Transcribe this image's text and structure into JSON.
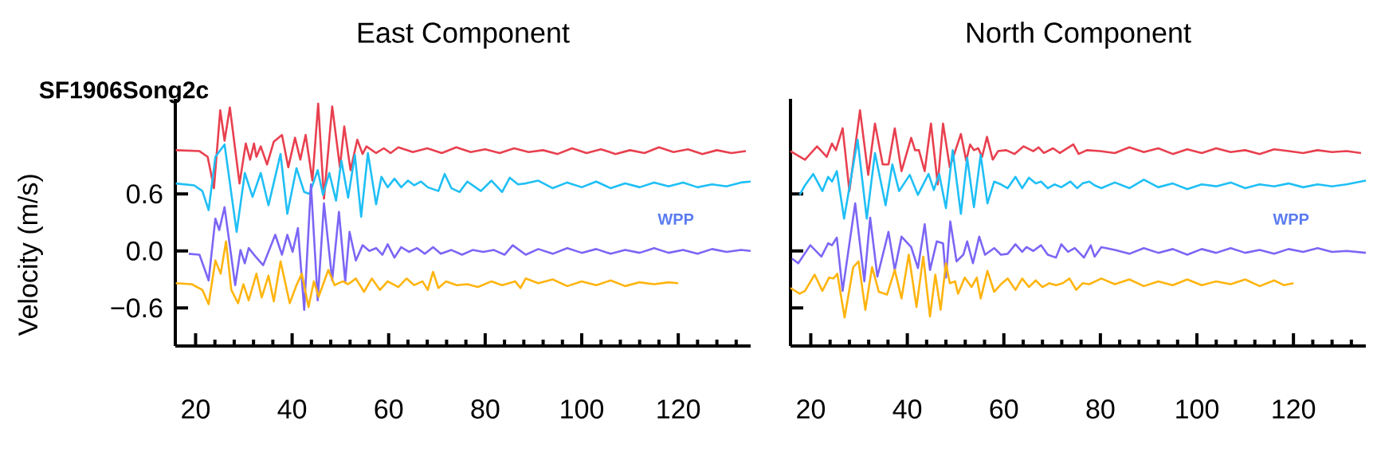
{
  "chart_data": [
    {
      "type": "line",
      "title": "East Component",
      "subtitle": "SF1906Song2c",
      "ylabel": "Velocity (m/s)",
      "annotations": [
        "WPP"
      ],
      "marker": "none",
      "line_style": "solid",
      "xlim": [
        15.8,
        135
      ],
      "ylim": [
        -1.0,
        1.6
      ],
      "xticks": [
        20,
        {
          "value": 24,
          "label": null
        },
        {
          "value": 28,
          "label": null
        },
        {
          "value": 32,
          "label": null
        },
        {
          "value": 36,
          "label": null
        },
        40,
        {
          "value": 44,
          "label": null
        },
        {
          "value": 48,
          "label": null
        },
        {
          "value": 52,
          "label": null
        },
        {
          "value": 56,
          "label": null
        },
        60,
        {
          "value": 64,
          "label": null
        },
        {
          "value": 68,
          "label": null
        },
        {
          "value": 72,
          "label": null
        },
        {
          "value": 76,
          "label": null
        },
        80,
        {
          "value": 84,
          "label": null
        },
        {
          "value": 88,
          "label": null
        },
        {
          "value": 92,
          "label": null
        },
        {
          "value": 96,
          "label": null
        },
        100,
        {
          "value": 104,
          "label": null
        },
        {
          "value": 108,
          "label": null
        },
        {
          "value": 112,
          "label": null
        },
        {
          "value": 116,
          "label": null
        },
        120,
        {
          "value": 124,
          "label": null
        },
        {
          "value": 128,
          "label": null
        },
        {
          "value": 132,
          "label": null
        }
      ],
      "yticks": [
        {
          "value": 0.6,
          "label": "0.6"
        },
        {
          "value": 0.0,
          "label": "0.0"
        },
        {
          "value": -0.6,
          "label": "−0.6"
        }
      ],
      "series": [
        {
          "color": "#e8404f",
          "x": [
            15.9,
            20.8,
            22.5,
            23.8,
            25.1,
            26.0,
            27.1,
            29.1,
            30.4,
            31.3,
            32.1,
            32.6,
            33.5,
            34.8,
            36.2,
            37.9,
            39.2,
            40.6,
            41.7,
            42.8,
            44.2,
            45.4,
            46.6,
            48.3,
            49.9,
            50.8,
            52.1,
            53.5,
            54.6,
            55.4,
            57.4,
            59.0,
            60.4,
            62.0,
            65,
            68,
            71,
            74,
            77,
            80,
            83,
            86,
            89,
            92,
            95,
            98,
            101,
            104,
            107,
            110,
            113,
            116,
            119,
            122,
            125,
            128,
            131,
            134
          ],
          "values": [
            1.06,
            1.05,
            0.99,
            0.66,
            1.48,
            1.16,
            1.51,
            0.71,
            1.13,
            0.96,
            1.13,
            0.99,
            1.1,
            0.91,
            1.15,
            1.22,
            0.88,
            1.19,
            0.96,
            1.22,
            0.74,
            1.55,
            0.55,
            1.52,
            0.88,
            1.31,
            0.85,
            1.17,
            1.02,
            1.1,
            1.03,
            1.08,
            1.03,
            1.09,
            1.04,
            1.08,
            1.03,
            1.09,
            1.04,
            1.07,
            1.03,
            1.08,
            1.04,
            1.06,
            1.02,
            1.08,
            1.03,
            1.07,
            1.02,
            1.06,
            1.03,
            1.09,
            1.04,
            1.07,
            1.02,
            1.06,
            1.03,
            1.05
          ]
        },
        {
          "color": "#1fbff5",
          "x": [
            15.9,
            19.7,
            21.4,
            22.7,
            24.1,
            26.0,
            28.5,
            30.2,
            31.8,
            33.5,
            35.1,
            37.6,
            39.0,
            40.9,
            42.5,
            43.6,
            45.3,
            46.4,
            47.7,
            49.1,
            50.2,
            51.6,
            53.0,
            54.3,
            55.7,
            57.4,
            58.5,
            59.8,
            61.2,
            62.6,
            64.0,
            65.3,
            66.7,
            68.1,
            70.3,
            71.6,
            73.0,
            74.7,
            76.3,
            79.1,
            81.3,
            83.5,
            85.1,
            86.8,
            88.4,
            91,
            94,
            97,
            100,
            103,
            106,
            109,
            112,
            115,
            118,
            121,
            124,
            127,
            130,
            133,
            135
          ],
          "values": [
            0.71,
            0.69,
            0.63,
            0.43,
            0.99,
            1.12,
            0.2,
            0.82,
            0.57,
            0.82,
            0.48,
            1.02,
            0.39,
            0.87,
            0.62,
            0.6,
            0.85,
            0.59,
            0.82,
            0.53,
            0.95,
            0.56,
            1.01,
            0.36,
            1.03,
            0.49,
            0.78,
            0.67,
            0.76,
            0.67,
            0.74,
            0.69,
            0.73,
            0.67,
            0.63,
            0.81,
            0.66,
            0.62,
            0.73,
            0.63,
            0.74,
            0.62,
            0.77,
            0.7,
            0.71,
            0.74,
            0.66,
            0.72,
            0.67,
            0.73,
            0.66,
            0.71,
            0.67,
            0.72,
            0.68,
            0.72,
            0.67,
            0.7,
            0.68,
            0.72,
            0.73
          ]
        },
        {
          "color": "#7b66f5",
          "x": [
            18.6,
            20.8,
            22.7,
            24.1,
            24.9,
            26.0,
            28.2,
            29.3,
            30.2,
            31.0,
            32.1,
            34.0,
            36.5,
            37.9,
            39.0,
            40.1,
            41.2,
            42.5,
            43.9,
            45.3,
            46.6,
            48.3,
            49.7,
            51.0,
            51.9,
            53.2,
            54.6,
            56.0,
            57.4,
            58.7,
            59.8,
            61.2,
            62.6,
            64.2,
            65.9,
            67.5,
            69.2,
            70.8,
            73.0,
            75.2,
            77.4,
            79.6,
            81.8,
            84.0,
            85.7,
            88.4,
            91,
            94,
            97,
            100,
            103,
            106,
            109,
            112,
            115,
            118,
            121,
            124,
            127,
            130,
            133,
            135
          ],
          "values": [
            -0.03,
            -0.04,
            -0.31,
            0.34,
            0.22,
            0.46,
            -0.36,
            0.01,
            -0.13,
            0.03,
            -0.04,
            -0.15,
            0.17,
            -0.04,
            0.17,
            -0.01,
            0.24,
            -0.62,
            0.7,
            -0.52,
            0.5,
            -0.31,
            0.41,
            -0.32,
            0.2,
            -0.1,
            0.06,
            0.0,
            0.03,
            -0.04,
            0.07,
            -0.07,
            0.04,
            -0.01,
            0.03,
            -0.03,
            0.04,
            -0.03,
            0.01,
            -0.04,
            0.01,
            -0.01,
            0.01,
            -0.04,
            0.06,
            -0.04,
            0.02,
            -0.03,
            0.03,
            -0.02,
            0.02,
            -0.03,
            0.01,
            -0.02,
            0.03,
            -0.02,
            0.01,
            -0.03,
            0.02,
            -0.01,
            0.01,
            0.0
          ]
        },
        {
          "color": "#ffb40f",
          "x": [
            15.9,
            19.2,
            21.4,
            22.7,
            24.1,
            25.2,
            26.3,
            27.4,
            28.8,
            29.9,
            31.0,
            32.6,
            33.7,
            35.1,
            36.2,
            37.6,
            39.5,
            40.9,
            42.0,
            43.4,
            44.5,
            45.5,
            47.5,
            48.8,
            50.5,
            51.6,
            53.2,
            54.9,
            56.5,
            58.2,
            59.8,
            62.0,
            63.7,
            65.3,
            67.0,
            68.1,
            69.2,
            70.3,
            71.9,
            74.1,
            76.3,
            78.5,
            81.3,
            83.5,
            86.2,
            87.3,
            88.4,
            91,
            94,
            97,
            100,
            103,
            106,
            109,
            112,
            115,
            118,
            120
          ],
          "values": [
            -0.34,
            -0.35,
            -0.41,
            -0.56,
            -0.1,
            -0.24,
            0.1,
            -0.41,
            -0.55,
            -0.35,
            -0.52,
            -0.24,
            -0.49,
            -0.26,
            -0.53,
            -0.11,
            -0.55,
            -0.36,
            -0.24,
            -0.59,
            -0.32,
            -0.48,
            -0.2,
            -0.36,
            -0.32,
            -0.35,
            -0.29,
            -0.43,
            -0.29,
            -0.41,
            -0.32,
            -0.38,
            -0.29,
            -0.36,
            -0.32,
            -0.41,
            -0.22,
            -0.39,
            -0.32,
            -0.36,
            -0.35,
            -0.38,
            -0.32,
            -0.36,
            -0.32,
            -0.39,
            -0.29,
            -0.34,
            -0.3,
            -0.37,
            -0.32,
            -0.36,
            -0.31,
            -0.37,
            -0.33,
            -0.35,
            -0.33,
            -0.34
          ]
        }
      ]
    },
    {
      "type": "line",
      "title": "North Component",
      "annotations": [
        "WPP"
      ],
      "marker": "none",
      "line_style": "solid",
      "tick_labels": "x",
      "xlim": [
        15.8,
        135
      ],
      "ylim": [
        -1.0,
        1.6
      ],
      "xticks": [
        20,
        {
          "value": 24,
          "label": null
        },
        {
          "value": 28,
          "label": null
        },
        {
          "value": 32,
          "label": null
        },
        {
          "value": 36,
          "label": null
        },
        40,
        {
          "value": 44,
          "label": null
        },
        {
          "value": 48,
          "label": null
        },
        {
          "value": 52,
          "label": null
        },
        {
          "value": 56,
          "label": null
        },
        60,
        {
          "value": 64,
          "label": null
        },
        {
          "value": 68,
          "label": null
        },
        {
          "value": 72,
          "label": null
        },
        {
          "value": 76,
          "label": null
        },
        80,
        {
          "value": 84,
          "label": null
        },
        {
          "value": 88,
          "label": null
        },
        {
          "value": 92,
          "label": null
        },
        {
          "value": 96,
          "label": null
        },
        100,
        {
          "value": 104,
          "label": null
        },
        {
          "value": 108,
          "label": null
        },
        {
          "value": 112,
          "label": null
        },
        {
          "value": 116,
          "label": null
        },
        120,
        {
          "value": 124,
          "label": null
        },
        {
          "value": 128,
          "label": null
        },
        {
          "value": 132,
          "label": null
        }
      ],
      "yticks": [
        {
          "value": 0.6,
          "label": null
        },
        {
          "value": 0.0,
          "label": null
        },
        {
          "value": -0.6,
          "label": null
        }
      ],
      "series": [
        {
          "color": "#e8404f",
          "x": [
            15.8,
            18.8,
            21.3,
            23.3,
            24.4,
            25.2,
            26.6,
            28.0,
            30.2,
            31.9,
            33.3,
            34.9,
            36.1,
            37.4,
            38.8,
            40.8,
            41.6,
            42.4,
            43.6,
            44.9,
            46.3,
            47.4,
            48.8,
            51.1,
            52.2,
            53.0,
            53.8,
            54.7,
            55.5,
            56.5,
            57.7,
            58.8,
            60.5,
            62.2,
            64.1,
            66.1,
            67.2,
            68.3,
            70.2,
            71.6,
            74.4,
            75.5,
            77.2,
            79.9,
            83,
            86,
            89,
            92,
            95,
            98,
            101,
            104,
            107,
            110,
            113,
            116,
            119,
            122,
            125,
            128,
            131,
            134
          ],
          "values": [
            1.05,
            0.96,
            1.1,
            0.99,
            1.13,
            1.06,
            1.29,
            0.63,
            1.48,
            0.8,
            1.34,
            0.91,
            0.91,
            1.29,
            0.84,
            1.19,
            1.06,
            1.06,
            0.84,
            1.34,
            0.7,
            1.34,
            0.88,
            1.23,
            0.95,
            1.12,
            1.06,
            1.08,
            0.99,
            1.2,
            0.96,
            1.05,
            1.06,
            1.02,
            1.1,
            1.05,
            1.09,
            1.03,
            1.08,
            1.03,
            1.12,
            1.02,
            1.06,
            1.05,
            1.03,
            1.09,
            1.04,
            1.08,
            1.02,
            1.07,
            1.03,
            1.08,
            1.04,
            1.06,
            1.02,
            1.07,
            1.05,
            1.03,
            1.06,
            1.04,
            1.05,
            1.03
          ]
        },
        {
          "color": "#1fbff5",
          "x": [
            17.7,
            18.8,
            20.5,
            22.4,
            23.6,
            24.4,
            25.4,
            26.9,
            29.7,
            31.6,
            33.3,
            35.5,
            36.9,
            38.3,
            40.5,
            42.2,
            44.4,
            45.5,
            46.6,
            48.0,
            49.4,
            51.1,
            52.4,
            53.8,
            55.2,
            56.6,
            58.0,
            59.4,
            60.8,
            62.4,
            63.8,
            65.2,
            66.6,
            67.7,
            69.1,
            70.5,
            71.9,
            73.8,
            75.2,
            76.3,
            77.7,
            78.8,
            80.2,
            83,
            86,
            89,
            92,
            95,
            98,
            101,
            104,
            107,
            110,
            113,
            116,
            119,
            122,
            125,
            128,
            131,
            135
          ],
          "values": [
            0.59,
            0.69,
            0.81,
            0.63,
            0.78,
            0.73,
            0.84,
            0.34,
            1.17,
            0.34,
            1.03,
            0.48,
            0.91,
            0.63,
            0.8,
            0.59,
            0.81,
            0.64,
            0.81,
            0.45,
            1.06,
            0.39,
            0.98,
            0.46,
            1.01,
            0.5,
            0.73,
            0.7,
            0.66,
            0.78,
            0.66,
            0.77,
            0.71,
            0.73,
            0.66,
            0.7,
            0.67,
            0.73,
            0.66,
            0.71,
            0.73,
            0.69,
            0.66,
            0.72,
            0.66,
            0.75,
            0.67,
            0.71,
            0.65,
            0.7,
            0.68,
            0.72,
            0.66,
            0.7,
            0.68,
            0.71,
            0.67,
            0.7,
            0.68,
            0.7,
            0.74
          ]
        },
        {
          "color": "#7b66f5",
          "x": [
            16.1,
            17.4,
            19.9,
            22.2,
            23.6,
            24.4,
            25.4,
            26.6,
            29.2,
            31.1,
            32.3,
            33.8,
            36.1,
            37.4,
            38.8,
            40.8,
            42.2,
            43.6,
            44.7,
            46.1,
            47.4,
            48.0,
            48.9,
            50.2,
            51.6,
            52.4,
            53.6,
            54.9,
            56.1,
            58.0,
            59.4,
            60.8,
            62.4,
            63.8,
            64.7,
            66.1,
            67.7,
            69.1,
            70.8,
            71.9,
            73.3,
            74.7,
            76.6,
            78.0,
            78.8,
            80.2,
            83,
            86,
            89,
            92,
            95,
            98,
            101,
            104,
            107,
            110,
            113,
            116,
            119,
            122,
            125,
            128,
            131,
            135
          ],
          "values": [
            -0.08,
            -0.13,
            0.06,
            -0.06,
            0.08,
            0.06,
            0.14,
            -0.42,
            0.5,
            -0.32,
            0.35,
            -0.27,
            0.2,
            -0.2,
            0.15,
            0.04,
            -0.18,
            0.28,
            -0.2,
            0.1,
            0.08,
            -0.28,
            0.31,
            -0.11,
            -0.04,
            0.1,
            -0.13,
            0.15,
            -0.04,
            0.03,
            -0.04,
            -0.03,
            0.07,
            -0.01,
            0.04,
            0.0,
            0.06,
            -0.04,
            -0.07,
            0.07,
            -0.01,
            0.03,
            -0.07,
            0.06,
            -0.06,
            0.04,
            0.01,
            -0.03,
            0.03,
            -0.02,
            0.02,
            -0.04,
            0.02,
            -0.02,
            0.03,
            -0.02,
            0.01,
            -0.03,
            0.02,
            -0.01,
            0.03,
            -0.01,
            0.0,
            -0.02
          ]
        },
        {
          "color": "#ffb40f",
          "x": [
            15.8,
            17.7,
            18.8,
            20.8,
            22.4,
            23.8,
            24.7,
            25.5,
            27.0,
            28.8,
            29.9,
            31.3,
            32.7,
            34.1,
            35.8,
            37.4,
            38.8,
            40.3,
            41.9,
            43.3,
            44.7,
            45.8,
            46.9,
            48.0,
            48.8,
            49.9,
            50.5,
            51.9,
            53.3,
            54.4,
            55.2,
            56.6,
            58.0,
            59.4,
            60.8,
            62.4,
            63.8,
            65.2,
            66.6,
            68.0,
            69.4,
            70.8,
            72.2,
            73.6,
            75.0,
            76.3,
            77.7,
            80.2,
            83,
            86,
            89,
            92,
            95,
            98,
            101,
            104,
            107,
            110,
            113,
            116,
            118,
            120
          ],
          "values": [
            -0.39,
            -0.45,
            -0.42,
            -0.25,
            -0.42,
            -0.28,
            -0.29,
            -0.24,
            -0.7,
            -0.17,
            -0.11,
            -0.62,
            -0.17,
            -0.43,
            -0.46,
            -0.2,
            -0.5,
            -0.04,
            -0.59,
            -0.06,
            -0.69,
            -0.25,
            -0.62,
            -0.13,
            -0.34,
            -0.32,
            -0.45,
            -0.28,
            -0.38,
            -0.28,
            -0.5,
            -0.21,
            -0.43,
            -0.35,
            -0.29,
            -0.41,
            -0.29,
            -0.38,
            -0.31,
            -0.38,
            -0.34,
            -0.36,
            -0.34,
            -0.29,
            -0.41,
            -0.34,
            -0.35,
            -0.29,
            -0.35,
            -0.3,
            -0.37,
            -0.32,
            -0.36,
            -0.3,
            -0.36,
            -0.32,
            -0.35,
            -0.3,
            -0.37,
            -0.31,
            -0.36,
            -0.34
          ]
        }
      ]
    }
  ]
}
